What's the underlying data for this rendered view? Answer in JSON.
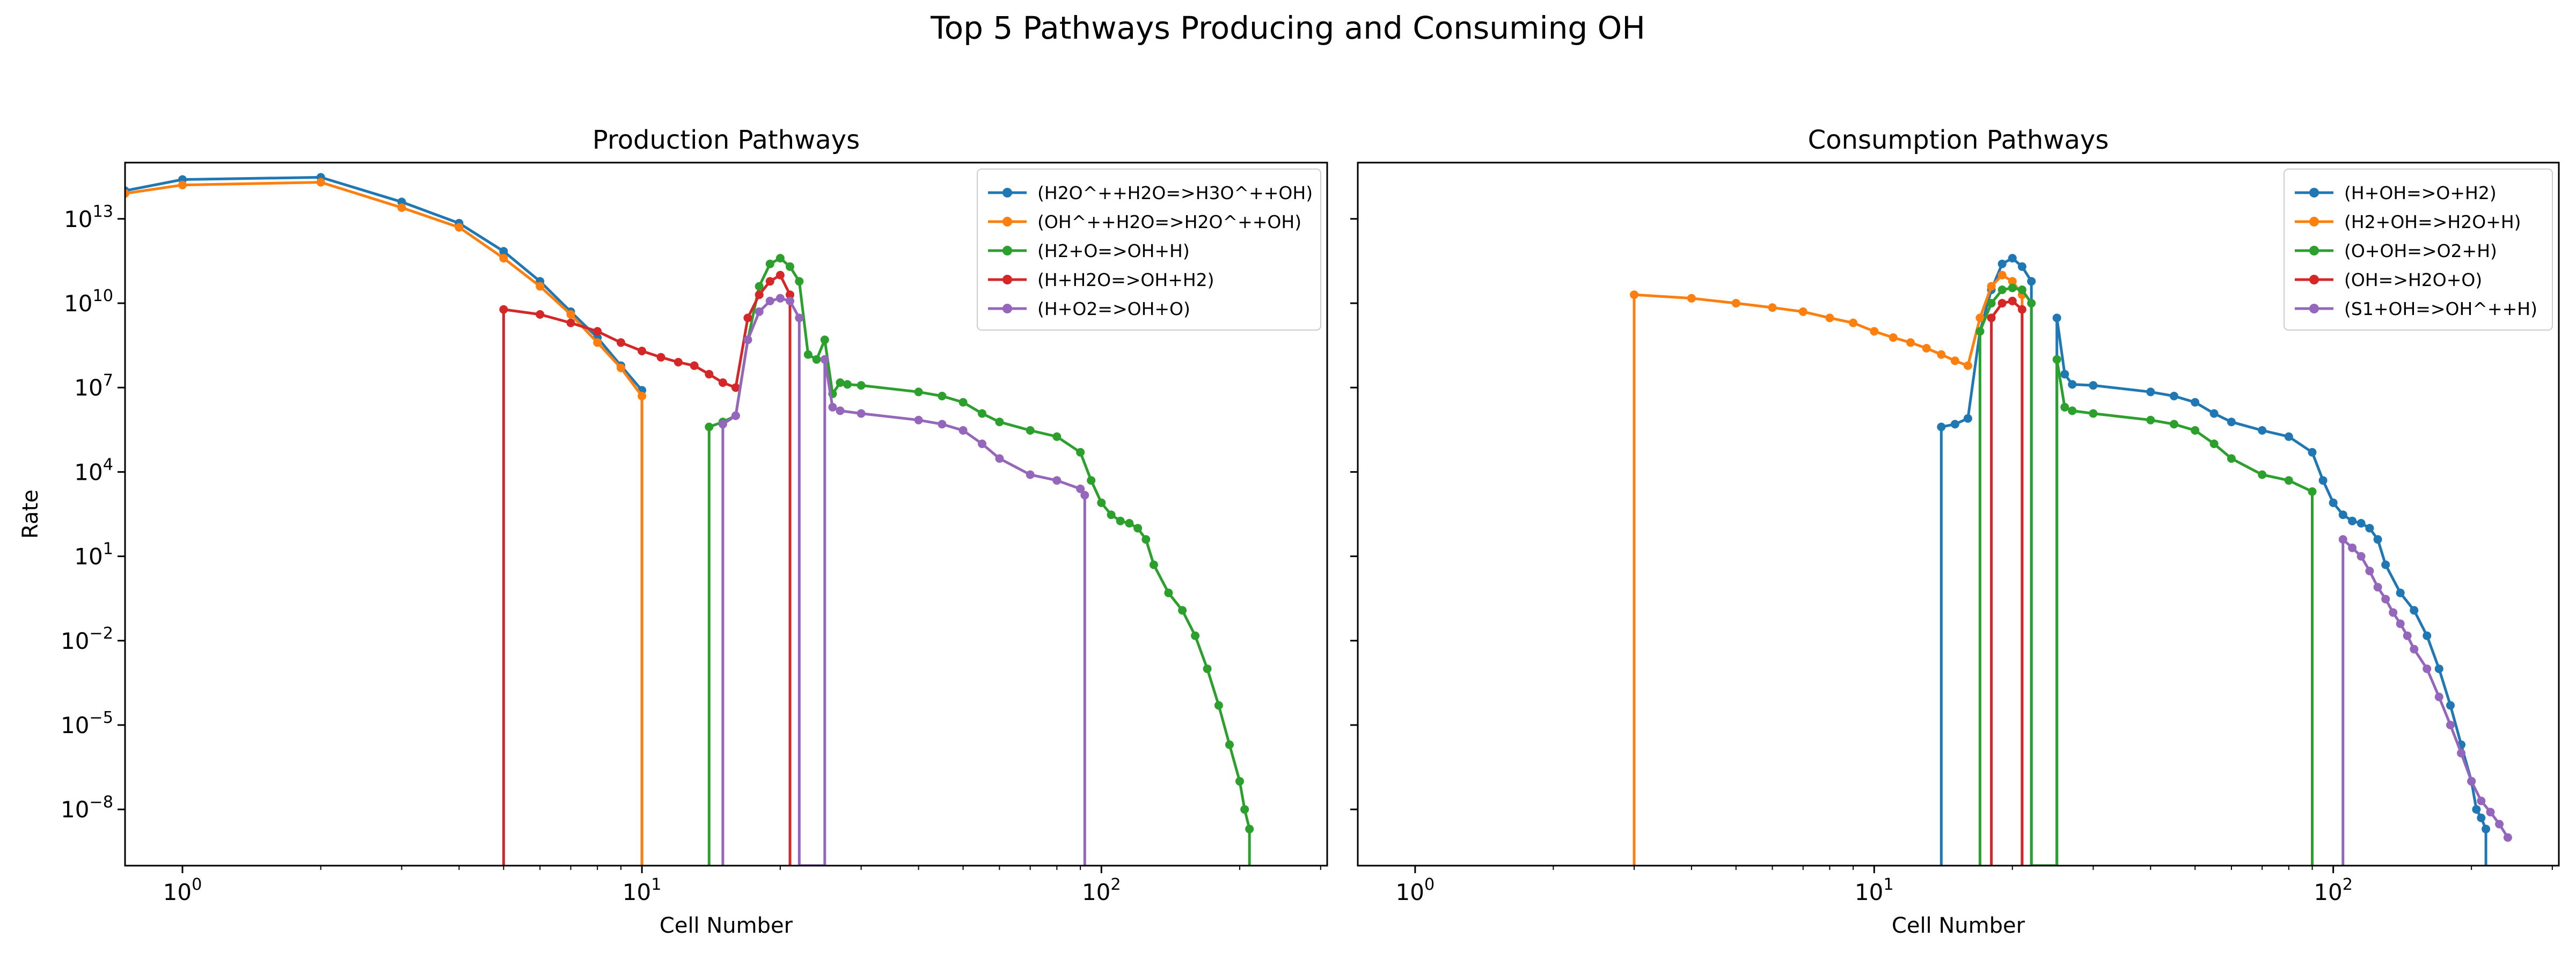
{
  "figure": {
    "title": "Top 5 Pathways Producing and Consuming OH"
  },
  "chart_data": [
    {
      "type": "line",
      "title": "Production Pathways",
      "xlabel": "Cell Number",
      "ylabel": "Rate",
      "xscale": "log",
      "yscale": "log",
      "xlim": [
        0.75,
        310
      ],
      "ylim": [
        1e-10,
        1000000000000000.0
      ],
      "xticks": [
        1,
        10,
        100
      ],
      "xtick_labels": [
        [
          "10",
          "0"
        ],
        [
          "10",
          "1"
        ],
        [
          "10",
          "2"
        ]
      ],
      "yticks": [
        1e-08,
        1e-05,
        0.01,
        10,
        10000,
        10000000.0,
        10000000000.0,
        10000000000000.0
      ],
      "ytick_labels": [
        [
          "10",
          "−8"
        ],
        [
          "10",
          "−5"
        ],
        [
          "10",
          "−2"
        ],
        [
          "10",
          "1"
        ],
        [
          "10",
          "4"
        ],
        [
          "10",
          "7"
        ],
        [
          "10",
          "10"
        ],
        [
          "10",
          "13"
        ]
      ],
      "grid": false,
      "legend_position": "top-right",
      "series": [
        {
          "name": "(H2O^++H2O=>H3O^++OH)",
          "color": "#1f77b4",
          "points": [
            [
              0.75,
              100000000000000.0
            ],
            [
              1,
              250000000000000.0
            ],
            [
              2,
              300000000000000.0
            ],
            [
              3,
              40000000000000.0
            ],
            [
              4,
              7000000000000.0
            ],
            [
              5,
              700000000000.0
            ],
            [
              6,
              60000000000.0
            ],
            [
              7,
              5000000000.0
            ],
            [
              8,
              600000000.0
            ],
            [
              9,
              60000000.0
            ],
            [
              10,
              8000000.0
            ],
            [
              10,
              1e-10
            ]
          ]
        },
        {
          "name": "(OH^++H2O=>H2O^++OH)",
          "color": "#ff7f0e",
          "points": [
            [
              0.75,
              80000000000000.0
            ],
            [
              1,
              160000000000000.0
            ],
            [
              2,
              200000000000000.0
            ],
            [
              3,
              25000000000000.0
            ],
            [
              4,
              5000000000000.0
            ],
            [
              5,
              400000000000.0
            ],
            [
              6,
              40000000000.0
            ],
            [
              7,
              4000000000.0
            ],
            [
              8,
              400000000.0
            ],
            [
              9,
              50000000.0
            ],
            [
              10,
              5000000.0
            ],
            [
              10,
              1e-10
            ]
          ]
        },
        {
          "name": "(H2+O=>OH+H)",
          "color": "#2ca02c",
          "points": [
            [
              14,
              1e-10
            ],
            [
              14,
              400000.0
            ],
            [
              15,
              600000.0
            ],
            [
              16,
              1000000.0
            ],
            [
              17,
              500000000.0
            ],
            [
              18,
              40000000000.0
            ],
            [
              19,
              250000000000.0
            ],
            [
              20,
              400000000000.0
            ],
            [
              21,
              200000000000.0
            ],
            [
              22,
              60000000000.0
            ],
            [
              23,
              150000000.0
            ],
            [
              24,
              100000000.0
            ],
            [
              25,
              500000000.0
            ],
            [
              26,
              6000000.0
            ],
            [
              27,
              15000000.0
            ],
            [
              28,
              13000000.0
            ],
            [
              30,
              12000000.0
            ],
            [
              40,
              7000000.0
            ],
            [
              45,
              5000000.0
            ],
            [
              50,
              3000000.0
            ],
            [
              55,
              1200000.0
            ],
            [
              60,
              600000.0
            ],
            [
              70,
              300000.0
            ],
            [
              80,
              180000.0
            ],
            [
              90,
              50000.0
            ],
            [
              95,
              5000.0
            ],
            [
              100,
              800
            ],
            [
              105,
              300
            ],
            [
              110,
              180
            ],
            [
              115,
              150
            ],
            [
              120,
              100
            ],
            [
              125,
              40
            ],
            [
              130,
              5
            ],
            [
              140,
              0.5
            ],
            [
              150,
              0.12
            ],
            [
              160,
              0.015
            ],
            [
              170,
              0.001
            ],
            [
              180,
              5e-05
            ],
            [
              190,
              2e-06
            ],
            [
              200,
              1e-07
            ],
            [
              205,
              1e-08
            ],
            [
              210,
              2e-09
            ],
            [
              210,
              1e-10
            ]
          ]
        },
        {
          "name": "(H+H2O=>OH+H2)",
          "color": "#d62728",
          "points": [
            [
              5,
              1e-10
            ],
            [
              5,
              6000000000.0
            ],
            [
              6,
              4000000000.0
            ],
            [
              7,
              2000000000.0
            ],
            [
              8,
              1000000000.0
            ],
            [
              9,
              400000000.0
            ],
            [
              10,
              200000000.0
            ],
            [
              11,
              120000000.0
            ],
            [
              12,
              80000000.0
            ],
            [
              13,
              60000000.0
            ],
            [
              14,
              30000000.0
            ],
            [
              15,
              15000000.0
            ],
            [
              16,
              10000000.0
            ],
            [
              17,
              3000000000.0
            ],
            [
              18,
              20000000000.0
            ],
            [
              19,
              60000000000.0
            ],
            [
              20,
              100000000000.0
            ],
            [
              21,
              20000000000.0
            ],
            [
              21,
              1e-10
            ]
          ]
        },
        {
          "name": "(H+O2=>OH+O)",
          "color": "#9467bd",
          "points": [
            [
              15,
              1e-10
            ],
            [
              15,
              500000.0
            ],
            [
              16,
              1000000.0
            ],
            [
              17,
              500000000.0
            ],
            [
              18,
              5000000000.0
            ],
            [
              19,
              12000000000.0
            ],
            [
              20,
              15000000000.0
            ],
            [
              21,
              12000000000.0
            ],
            [
              22,
              3000000000.0
            ],
            [
              22,
              1e-10
            ],
            [
              25,
              1e-10
            ],
            [
              25,
              100000000.0
            ],
            [
              26,
              2000000.0
            ],
            [
              27,
              1500000.0
            ],
            [
              30,
              1200000.0
            ],
            [
              40,
              700000.0
            ],
            [
              45,
              500000.0
            ],
            [
              50,
              300000.0
            ],
            [
              55,
              100000.0
            ],
            [
              60,
              30000.0
            ],
            [
              70,
              8000.0
            ],
            [
              80,
              5000.0
            ],
            [
              90,
              2500.0
            ],
            [
              92,
              1500.0
            ],
            [
              92,
              1e-10
            ]
          ]
        }
      ]
    },
    {
      "type": "line",
      "title": "Consumption Pathways",
      "xlabel": "Cell Number",
      "ylabel": "",
      "xscale": "log",
      "yscale": "log",
      "xlim": [
        0.75,
        310
      ],
      "ylim": [
        1e-10,
        1000000000000000.0
      ],
      "xticks": [
        1,
        10,
        100
      ],
      "xtick_labels": [
        [
          "10",
          "0"
        ],
        [
          "10",
          "1"
        ],
        [
          "10",
          "2"
        ]
      ],
      "yticks": [
        1e-08,
        1e-05,
        0.01,
        10,
        10000,
        10000000.0,
        10000000000.0,
        10000000000000.0
      ],
      "ytick_labels": [],
      "grid": false,
      "legend_position": "top-right",
      "series": [
        {
          "name": "(H+OH=>O+H2)",
          "color": "#1f77b4",
          "points": [
            [
              14,
              1e-10
            ],
            [
              14,
              400000.0
            ],
            [
              15,
              500000.0
            ],
            [
              16,
              800000.0
            ],
            [
              17,
              1000000000.0
            ],
            [
              18,
              30000000000.0
            ],
            [
              19,
              250000000000.0
            ],
            [
              20,
              400000000000.0
            ],
            [
              21,
              200000000000.0
            ],
            [
              22,
              60000000000.0
            ],
            [
              22,
              1e-10
            ],
            [
              25,
              1e-10
            ],
            [
              25,
              3000000000.0
            ],
            [
              26,
              30000000.0
            ],
            [
              27,
              13000000.0
            ],
            [
              30,
              12000000.0
            ],
            [
              40,
              7000000.0
            ],
            [
              45,
              5000000.0
            ],
            [
              50,
              3000000.0
            ],
            [
              55,
              1200000.0
            ],
            [
              60,
              600000.0
            ],
            [
              70,
              300000.0
            ],
            [
              80,
              180000.0
            ],
            [
              90,
              50000.0
            ],
            [
              95,
              5000.0
            ],
            [
              100,
              800
            ],
            [
              105,
              300
            ],
            [
              110,
              180
            ],
            [
              115,
              150
            ],
            [
              120,
              100
            ],
            [
              125,
              40
            ],
            [
              130,
              5
            ],
            [
              140,
              0.5
            ],
            [
              150,
              0.12
            ],
            [
              160,
              0.015
            ],
            [
              170,
              0.001
            ],
            [
              180,
              5e-05
            ],
            [
              190,
              2e-06
            ],
            [
              200,
              1e-07
            ],
            [
              205,
              1e-08
            ],
            [
              210,
              5e-09
            ],
            [
              215,
              2e-09
            ],
            [
              215,
              1e-10
            ]
          ]
        },
        {
          "name": "(H2+OH=>H2O+H)",
          "color": "#ff7f0e",
          "points": [
            [
              3,
              1e-10
            ],
            [
              3,
              20000000000.0
            ],
            [
              4,
              15000000000.0
            ],
            [
              5,
              10000000000.0
            ],
            [
              6,
              7000000000.0
            ],
            [
              7,
              5000000000.0
            ],
            [
              8,
              3000000000.0
            ],
            [
              9,
              2000000000.0
            ],
            [
              10,
              1000000000.0
            ],
            [
              11,
              600000000.0
            ],
            [
              12,
              400000000.0
            ],
            [
              13,
              250000000.0
            ],
            [
              14,
              150000000.0
            ],
            [
              15,
              90000000.0
            ],
            [
              16,
              60000000.0
            ],
            [
              17,
              3000000000.0
            ],
            [
              18,
              40000000000.0
            ],
            [
              19,
              100000000000.0
            ],
            [
              20,
              60000000000.0
            ],
            [
              21,
              20000000000.0
            ],
            [
              21,
              1e-10
            ]
          ]
        },
        {
          "name": "(O+OH=>O2+H)",
          "color": "#2ca02c",
          "points": [
            [
              17,
              1e-10
            ],
            [
              17,
              1000000000.0
            ],
            [
              18,
              10000000000.0
            ],
            [
              19,
              30000000000.0
            ],
            [
              20,
              35000000000.0
            ],
            [
              21,
              30000000000.0
            ],
            [
              22,
              10000000000.0
            ],
            [
              22,
              1e-10
            ],
            [
              25,
              1e-10
            ],
            [
              25,
              100000000.0
            ],
            [
              26,
              2000000.0
            ],
            [
              27,
              1500000.0
            ],
            [
              30,
              1200000.0
            ],
            [
              40,
              700000.0
            ],
            [
              45,
              500000.0
            ],
            [
              50,
              300000.0
            ],
            [
              55,
              100000.0
            ],
            [
              60,
              30000.0
            ],
            [
              70,
              8000.0
            ],
            [
              80,
              5000.0
            ],
            [
              90,
              2000.0
            ],
            [
              90,
              1e-10
            ]
          ]
        },
        {
          "name": "(OH=>H2O+O)",
          "color": "#d62728",
          "points": [
            [
              18,
              1e-10
            ],
            [
              18,
              3000000000.0
            ],
            [
              19,
              10000000000.0
            ],
            [
              20,
              12000000000.0
            ],
            [
              21,
              6000000000.0
            ],
            [
              21,
              1e-10
            ]
          ]
        },
        {
          "name": "(S1+OH=>OH^++H)",
          "color": "#9467bd",
          "points": [
            [
              105,
              1e-10
            ],
            [
              105,
              40
            ],
            [
              110,
              20
            ],
            [
              115,
              10
            ],
            [
              120,
              3
            ],
            [
              125,
              0.8
            ],
            [
              130,
              0.3
            ],
            [
              135,
              0.1
            ],
            [
              140,
              0.04
            ],
            [
              145,
              0.015
            ],
            [
              150,
              0.005
            ],
            [
              160,
              0.001
            ],
            [
              170,
              0.0001
            ],
            [
              180,
              1e-05
            ],
            [
              190,
              1e-06
            ],
            [
              200,
              1e-07
            ],
            [
              210,
              2e-08
            ],
            [
              220,
              8e-09
            ],
            [
              230,
              3e-09
            ],
            [
              240,
              1e-09
            ]
          ]
        }
      ]
    }
  ]
}
